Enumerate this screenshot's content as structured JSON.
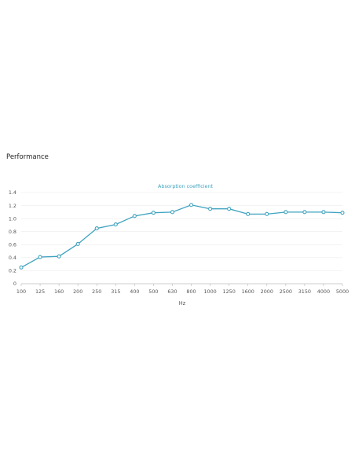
{
  "section": {
    "title": "Performance"
  },
  "chart_data": {
    "type": "line",
    "series_label": "Absorption coefficient",
    "xlabel": "Hz",
    "ylabel": "",
    "ylim": [
      0,
      1.4
    ],
    "yticks": [
      "0",
      "0.2",
      "0.4",
      "0.6",
      "0.8",
      "1.0",
      "1.2",
      "1.4"
    ],
    "categories": [
      "100",
      "125",
      "160",
      "200",
      "250",
      "315",
      "400",
      "500",
      "630",
      "800",
      "1000",
      "1250",
      "1600",
      "2000",
      "2500",
      "3150",
      "4000",
      "5000"
    ],
    "series": [
      {
        "name": "Absorption coefficient",
        "values": [
          0.25,
          0.41,
          0.42,
          0.61,
          0.85,
          0.91,
          1.04,
          1.09,
          1.1,
          1.21,
          1.15,
          1.15,
          1.07,
          1.07,
          1.1,
          1.1,
          1.1,
          1.09
        ]
      }
    ],
    "colors": {
      "line": "#3fa3bf",
      "grid": "#ececec",
      "axis": "#bbbbbb"
    },
    "grid": true,
    "legend": "top-center"
  }
}
